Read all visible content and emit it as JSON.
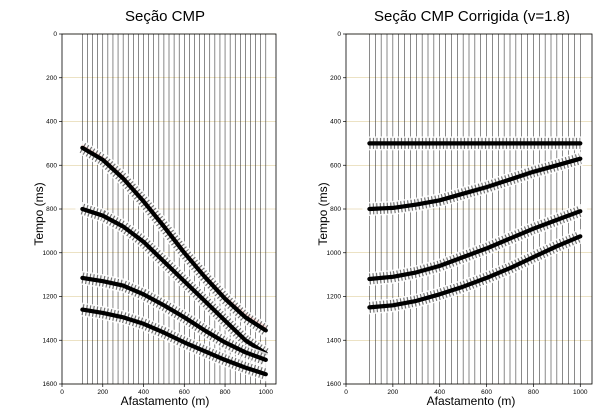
{
  "chart_data": [
    {
      "type": "line",
      "title": "Seção CMP",
      "xlabel": "Afastamento (m)",
      "ylabel": "Tempo (ms)",
      "xlim": [
        0,
        1050
      ],
      "ylim": [
        1600,
        0
      ],
      "y_axis_inverted": true,
      "xticks": [
        0,
        200,
        400,
        600,
        800,
        1000
      ],
      "xtick_labels": [
        "0",
        "200",
        "400",
        "600",
        "800",
        "1000"
      ],
      "yticks": [
        0,
        200,
        400,
        600,
        800,
        1000,
        1200,
        1400,
        1600
      ],
      "ytick_labels": [
        "0",
        "200",
        "400",
        "600",
        "800",
        "1000",
        "1200",
        "1400",
        "1600"
      ],
      "grid": true,
      "trace_offsets_range": [
        100,
        1000
      ],
      "trace_count": 37,
      "series": [
        {
          "x": [
            100,
            200,
            300,
            400,
            500,
            600,
            700,
            800,
            900,
            1000
          ],
          "y": [
            510,
            565,
            650,
            755,
            870,
            990,
            1100,
            1200,
            1280,
            1340
          ],
          "color": "#e0301e"
        },
        {
          "x": [
            100,
            200,
            300,
            400,
            500,
            600,
            700,
            800,
            900,
            1000
          ],
          "y": [
            520,
            575,
            660,
            765,
            880,
            1000,
            1110,
            1210,
            1295,
            1355
          ],
          "color": "#000000"
        },
        {
          "x": [
            100,
            200,
            300,
            400,
            500,
            600,
            700,
            800,
            900,
            1000
          ],
          "y": [
            800,
            830,
            880,
            950,
            1040,
            1130,
            1220,
            1310,
            1400,
            1460
          ],
          "color": "#000000"
        },
        {
          "x": [
            100,
            200,
            300,
            400,
            500,
            600,
            700,
            800,
            900,
            1000
          ],
          "y": [
            1115,
            1130,
            1150,
            1190,
            1240,
            1295,
            1355,
            1410,
            1455,
            1490
          ],
          "color": "#000000"
        },
        {
          "x": [
            100,
            200,
            300,
            400,
            500,
            600,
            700,
            800,
            900,
            1000
          ],
          "y": [
            1260,
            1275,
            1295,
            1325,
            1365,
            1410,
            1450,
            1490,
            1525,
            1555
          ],
          "color": "#000000"
        }
      ]
    },
    {
      "type": "line",
      "title": "Seção CMP Corrigida (v=1.8)",
      "xlabel": "Afastamento (m)",
      "ylabel": "Tempo (ms)",
      "xlim": [
        0,
        1050
      ],
      "ylim": [
        1600,
        0
      ],
      "y_axis_inverted": true,
      "xticks": [
        0,
        200,
        400,
        600,
        800,
        1000
      ],
      "xtick_labels": [
        "0",
        "200",
        "400",
        "600",
        "800",
        "1000"
      ],
      "yticks": [
        0,
        200,
        400,
        600,
        800,
        1000,
        1200,
        1400,
        1600
      ],
      "ytick_labels": [
        "0",
        "200",
        "400",
        "600",
        "800",
        "1000",
        "1200",
        "1400",
        "1600"
      ],
      "grid": true,
      "trace_offsets_range": [
        100,
        1000
      ],
      "trace_count": 37,
      "series": [
        {
          "x": [
            100,
            200,
            300,
            400,
            500,
            600,
            700,
            800,
            900,
            1000
          ],
          "y": [
            500,
            500,
            500,
            500,
            500,
            500,
            500,
            500,
            500,
            500
          ],
          "color": "#000000"
        },
        {
          "x": [
            100,
            200,
            300,
            400,
            500,
            600,
            700,
            800,
            900,
            1000
          ],
          "y": [
            800,
            795,
            780,
            760,
            730,
            700,
            665,
            630,
            600,
            570
          ],
          "color": "#000000"
        },
        {
          "x": [
            100,
            200,
            300,
            400,
            500,
            600,
            700,
            800,
            900,
            1000
          ],
          "y": [
            1120,
            1110,
            1090,
            1060,
            1020,
            980,
            935,
            890,
            850,
            810
          ],
          "color": "#000000"
        },
        {
          "x": [
            100,
            200,
            300,
            400,
            500,
            600,
            700,
            800,
            900,
            1000
          ],
          "y": [
            1250,
            1240,
            1220,
            1190,
            1155,
            1115,
            1070,
            1020,
            970,
            925
          ],
          "color": "#000000"
        }
      ]
    }
  ]
}
